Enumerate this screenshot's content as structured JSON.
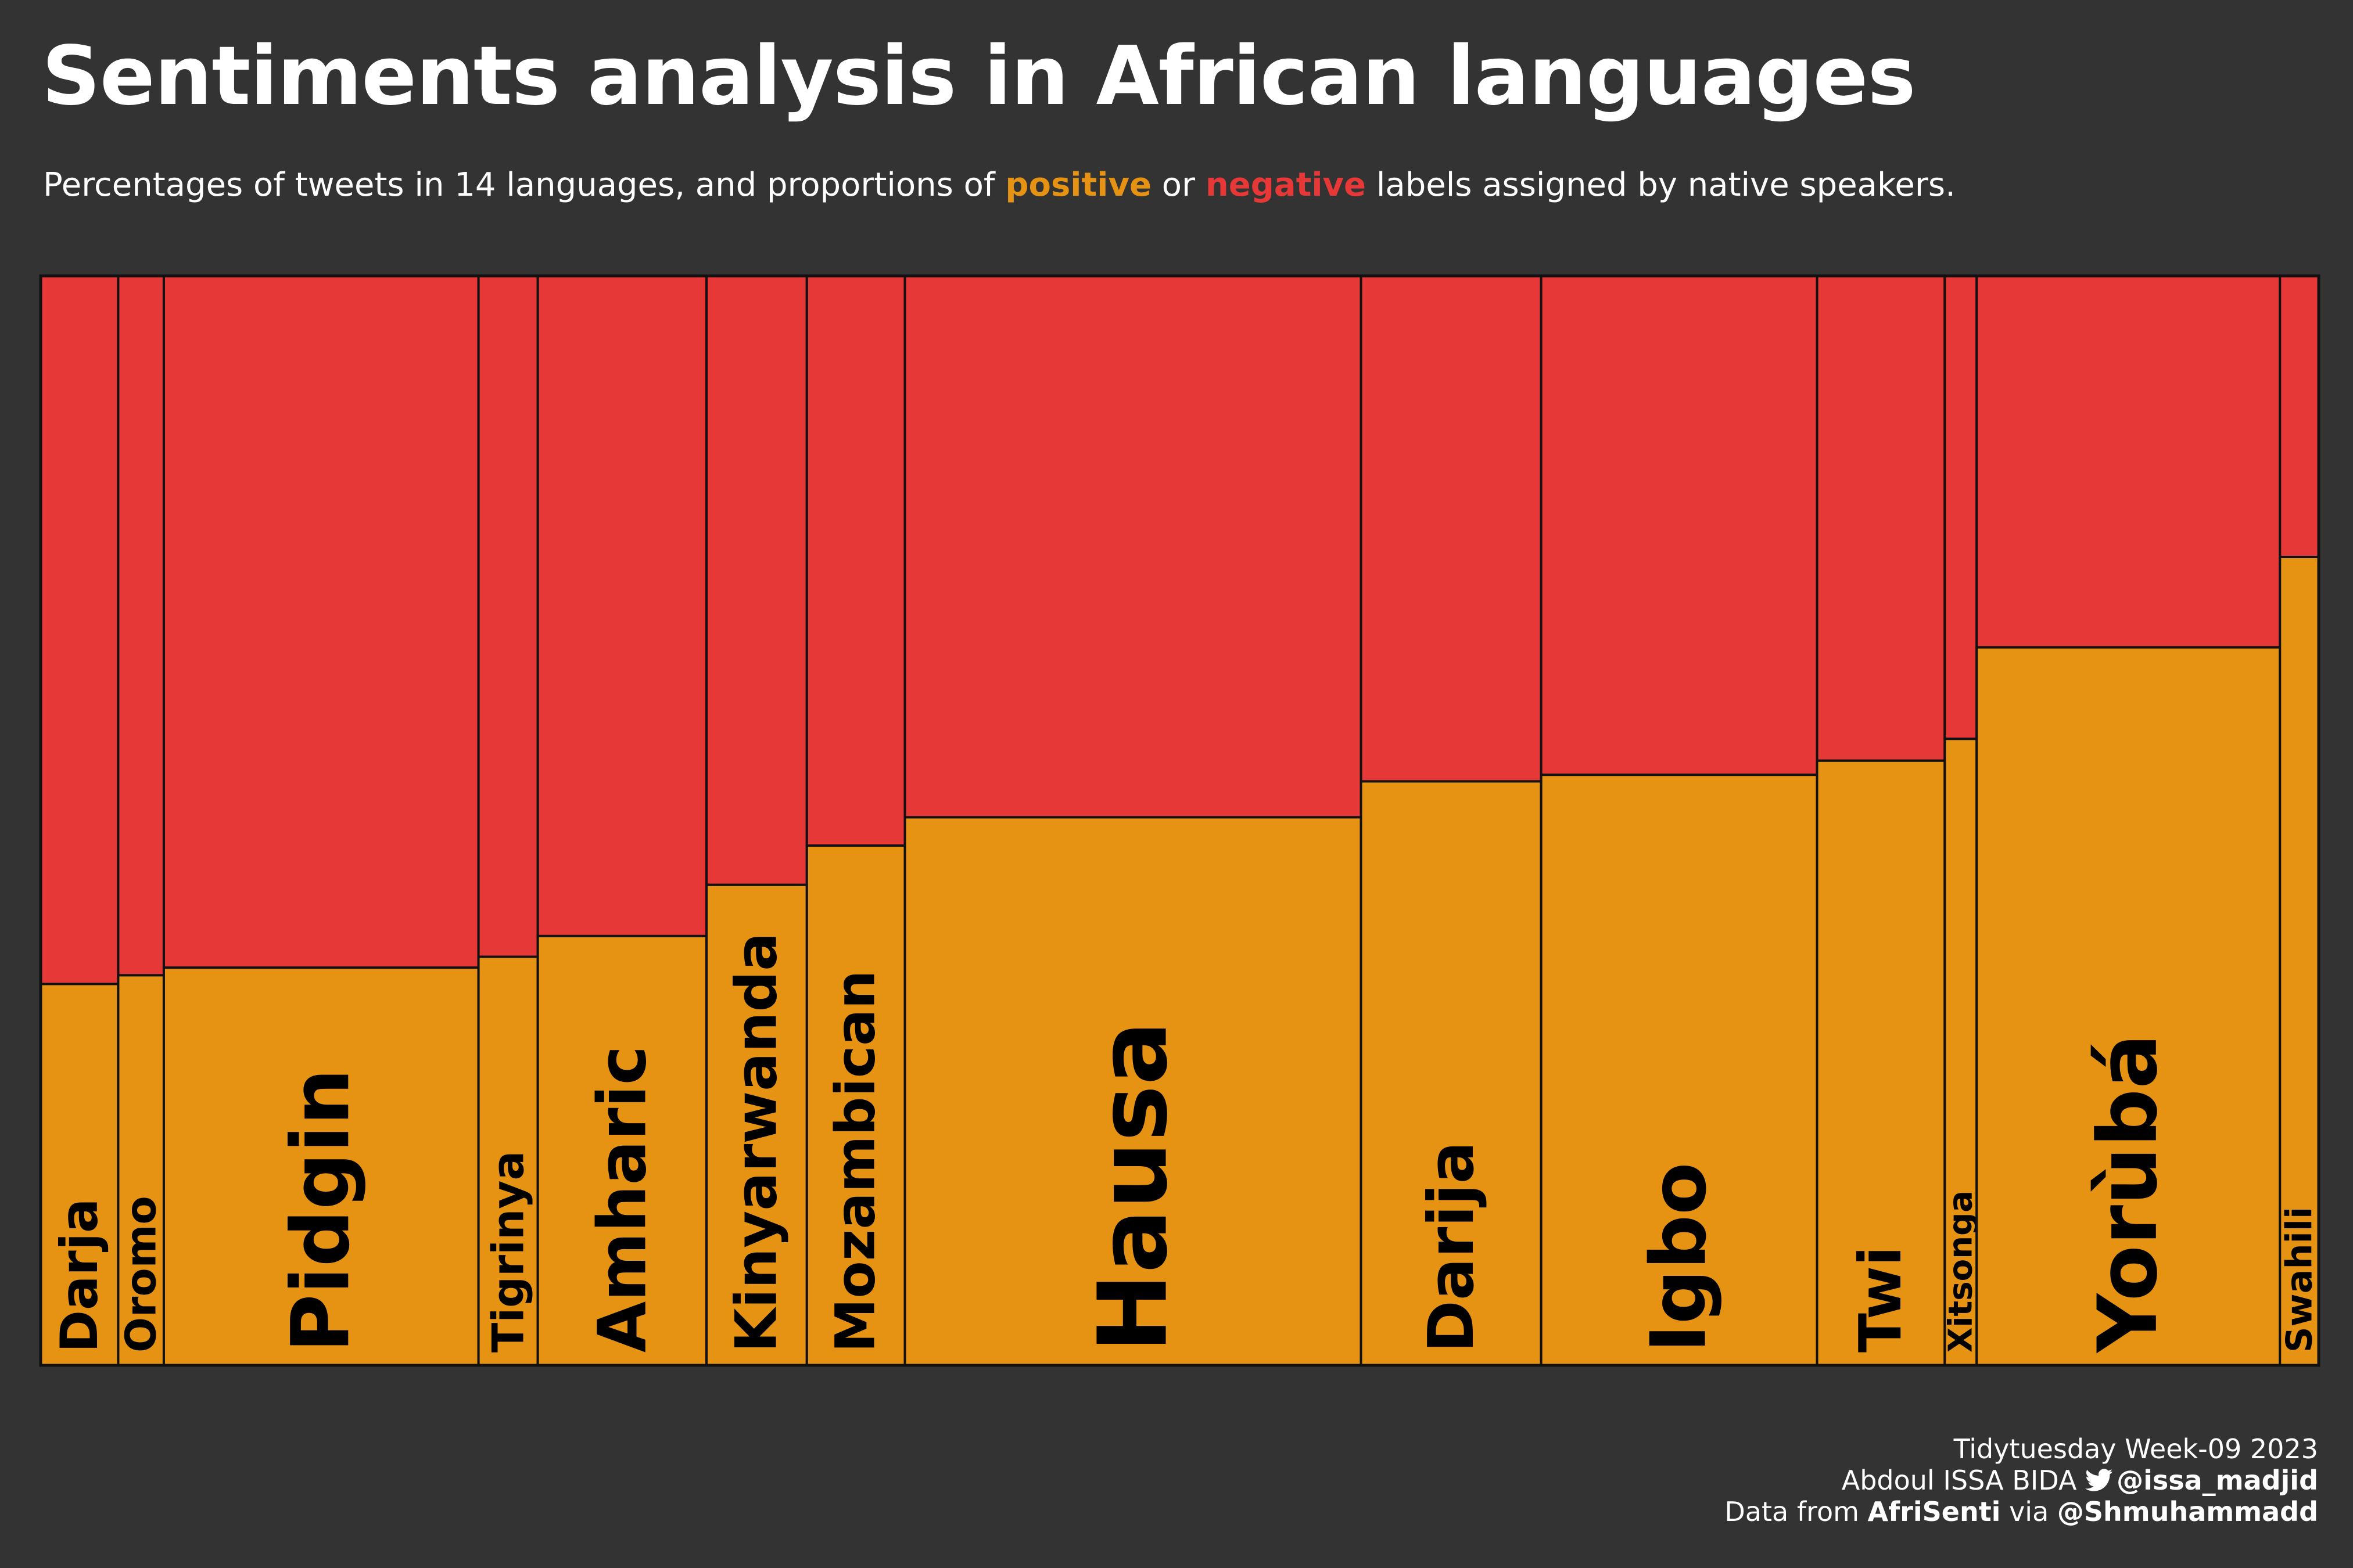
{
  "title": "Sentiments analysis in African languages",
  "subtitle": {
    "prefix": "Percentages of tweets in 14 languages, and proportions of ",
    "positive_word": "positive",
    "middle": " or ",
    "negative_word": "negative",
    "suffix": " labels assigned by native speakers."
  },
  "colors": {
    "background": "#333333",
    "positive": "#E69313",
    "negative": "#E63837",
    "outline": "#111111",
    "label": "#000000"
  },
  "chart_data": {
    "type": "mosaic",
    "title": "Sentiments analysis in African languages",
    "subtitle": "Percentages of tweets in 14 languages, and proportions of positive or negative labels assigned by native speakers.",
    "x_variable": "share of tweets (%)",
    "y_variable": "share of positive vs negative labels (%)",
    "series": [
      {
        "name": "positive",
        "color": "#E69313"
      },
      {
        "name": "negative",
        "color": "#E63837"
      }
    ],
    "categories": [
      "Darja",
      "Oromo",
      "Pidgin",
      "Tigrinya",
      "Amharic",
      "Kinyarwanda",
      "Mozambican",
      "Hausa",
      "Darija",
      "Igbo",
      "Twi",
      "Xitsonga",
      "Yorùbá",
      "Swahili"
    ],
    "tweet_share_pct": [
      3.4,
      2.0,
      13.8,
      2.6,
      7.4,
      4.4,
      4.3,
      20.0,
      7.9,
      12.1,
      5.6,
      1.4,
      13.3,
      1.7
    ],
    "positive_pct": [
      35.0,
      35.8,
      36.5,
      37.5,
      39.4,
      44.1,
      47.7,
      50.3,
      53.6,
      54.2,
      55.5,
      57.5,
      65.9,
      74.2
    ],
    "negative_pct": [
      65.0,
      64.2,
      63.5,
      62.5,
      60.6,
      55.9,
      52.3,
      49.7,
      46.4,
      45.8,
      44.5,
      42.5,
      34.1,
      25.8
    ],
    "label_size": [
      1.0,
      0.72,
      1.85,
      0.78,
      1.45,
      1.18,
      1.1,
      2.3,
      1.35,
      1.75,
      1.2,
      0.45,
      1.9,
      0.55
    ]
  },
  "caption": {
    "line1": "Tidytuesday Week-09 2023",
    "author": "Abdoul ISSA BIDA",
    "handle": "@issa_madjid",
    "data_prefix": "Data from ",
    "data_source": "AfriSenti",
    "via": " via ",
    "data_handle": "@Shmuhammadd"
  },
  "icons": {
    "caption_icon": "twitter-bird-icon"
  }
}
